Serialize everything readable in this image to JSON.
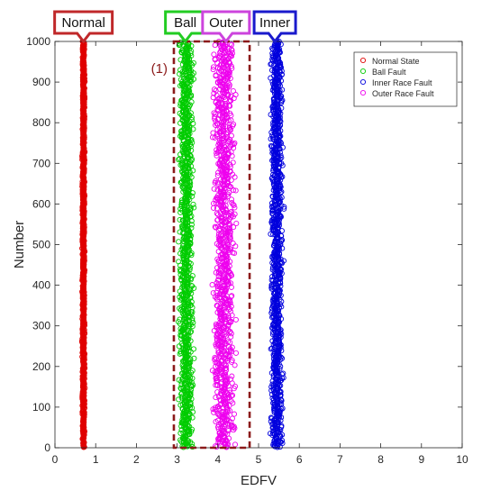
{
  "chart_data": {
    "type": "scatter",
    "xlabel": "EDFV",
    "ylabel": "Number",
    "xlim": [
      0,
      10
    ],
    "ylim": [
      0,
      1000
    ],
    "x_ticks": [
      "0",
      "1",
      "2",
      "3",
      "4",
      "5",
      "6",
      "7",
      "8",
      "9",
      "10"
    ],
    "y_ticks": [
      "0",
      "100",
      "200",
      "300",
      "400",
      "500",
      "600",
      "700",
      "800",
      "900",
      "1000"
    ],
    "x_tick_values": [
      0,
      1,
      2,
      3,
      4,
      5,
      6,
      7,
      8,
      9,
      10
    ],
    "y_tick_values": [
      0,
      100,
      200,
      300,
      400,
      500,
      600,
      700,
      800,
      900,
      1000
    ],
    "grid": false,
    "legend_position": "top-right",
    "marker": "open circle",
    "points_per_series": 1000,
    "series": [
      {
        "name": "Normal State",
        "color": "#e00000",
        "x_range": [
          0.66,
          0.74
        ]
      },
      {
        "name": "Ball Fault",
        "color": "#00cc00",
        "x_range": [
          3.0,
          3.45
        ]
      },
      {
        "name": "Inner Race Fault",
        "color": "#0000dd",
        "x_range": [
          5.25,
          5.65
        ]
      },
      {
        "name": "Outer Race Fault",
        "color": "#ee00ee",
        "x_range": [
          3.8,
          4.5
        ]
      }
    ],
    "callouts": [
      {
        "text": "Normal",
        "color": "#c0282a",
        "x": 0.7
      },
      {
        "text": "Ball",
        "color": "#22cc22",
        "x": 3.2
      },
      {
        "text": "Outer",
        "color": "#cc44dd",
        "x": 4.2
      },
      {
        "text": "Inner",
        "color": "#1a1acc",
        "x": 5.4
      }
    ],
    "annotation": {
      "label": "(1)",
      "color": "#8b1a1a",
      "x_range": [
        2.92,
        4.78
      ],
      "y_range": [
        0,
        1000
      ]
    }
  }
}
